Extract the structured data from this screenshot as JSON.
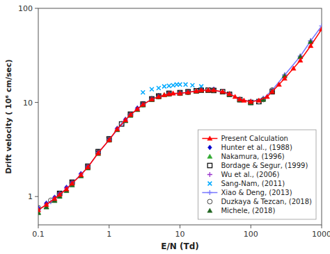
{
  "chart_data": {
    "type": "line",
    "xlabel": "E/N (Td)",
    "ylabel": "Drift velocity ( 10⁶ cm/sec)",
    "log": true,
    "xlim": [
      0.1,
      1000
    ],
    "ylim": [
      0.5,
      100
    ],
    "xticks": [
      0.1,
      1,
      10,
      100,
      1000
    ],
    "yticks": [
      1,
      10,
      100
    ],
    "grid": false,
    "legend": "lower right",
    "series": [
      {
        "name": "Present Calculation",
        "color": "#ff0000",
        "marker": "triangle",
        "line_style": "solid",
        "x": [
          0.1,
          0.13,
          0.17,
          0.2,
          0.25,
          0.3,
          0.4,
          0.5,
          0.7,
          1.0,
          1.3,
          1.7,
          2.0,
          2.5,
          3.0,
          4.0,
          5.0,
          6.0,
          7.0,
          8.0,
          10.0,
          13.0,
          17.0,
          20.0,
          25.0,
          30.0,
          40.0,
          50.0,
          60.0,
          70.0,
          80.0,
          100.0,
          130.0,
          170.0,
          200.0,
          250.0,
          300.0,
          400.0,
          500.0,
          700.0,
          1000.0
        ],
        "values": [
          0.72,
          0.82,
          0.95,
          1.05,
          1.2,
          1.38,
          1.7,
          2.05,
          2.9,
          4.0,
          5.2,
          6.5,
          7.4,
          8.5,
          9.5,
          10.8,
          11.5,
          12.0,
          12.3,
          12.5,
          12.5,
          12.8,
          13.2,
          13.5,
          13.5,
          13.5,
          13.0,
          12.3,
          11.5,
          10.8,
          10.5,
          10.2,
          10.5,
          11.5,
          13.0,
          15.5,
          18.0,
          23.0,
          28.0,
          40.0,
          60.0
        ]
      },
      {
        "name": "Hunter et al., (1988)",
        "color": "#0000cc",
        "marker": "diamond",
        "line_style": "none",
        "x": [
          0.1,
          0.13,
          0.17,
          0.2,
          0.25,
          0.3,
          0.4,
          0.5,
          0.7,
          1.0,
          1.3,
          1.7,
          2.0,
          2.5,
          3.0,
          4.0,
          5.0,
          7.0,
          10.0,
          13.0,
          20.0,
          30.0
        ],
        "values": [
          0.75,
          0.85,
          0.98,
          1.08,
          1.25,
          1.42,
          1.75,
          2.1,
          3.0,
          4.1,
          5.3,
          6.6,
          7.5,
          8.7,
          9.7,
          11.0,
          11.8,
          12.5,
          12.7,
          13.0,
          13.7,
          13.8
        ]
      },
      {
        "name": "Nakamura, (1996)",
        "color": "#33aa33",
        "marker": "triangle",
        "line_style": "none",
        "x": [
          0.1,
          0.13,
          0.17,
          0.2,
          0.25,
          0.3,
          0.4,
          0.5,
          0.7,
          1.0,
          1.3,
          1.7,
          2.0,
          2.5,
          3.0,
          4.0,
          5.0,
          6.0,
          7.0,
          10.0,
          13.0,
          17.0,
          20.0,
          25.0,
          30.0,
          40.0,
          50.0,
          70.0,
          100.0,
          150.0,
          200.0,
          300.0,
          500.0,
          700.0
        ],
        "values": [
          0.68,
          0.78,
          0.92,
          1.02,
          1.18,
          1.35,
          1.68,
          2.02,
          2.88,
          3.98,
          5.15,
          6.4,
          7.3,
          8.4,
          9.4,
          10.7,
          11.5,
          12.0,
          12.3,
          12.5,
          12.8,
          13.2,
          13.5,
          13.5,
          13.5,
          13.0,
          12.3,
          10.8,
          10.2,
          11.0,
          13.5,
          19.5,
          31.0,
          45.0
        ]
      },
      {
        "name": "Bordage & Segur, (1999)",
        "color": "#000000",
        "marker": "open-square",
        "line_style": "none",
        "x": [
          0.2,
          0.3,
          0.5,
          0.7,
          1.0,
          1.5,
          2.0,
          3.0,
          4.0,
          5.0,
          7.0,
          10.0,
          13.0,
          17.0,
          20.0,
          25.0,
          30.0,
          40.0,
          50.0,
          70.0,
          100.0,
          130.0,
          200.0
        ],
        "values": [
          1.08,
          1.42,
          2.1,
          3.0,
          4.1,
          5.9,
          7.5,
          9.6,
          10.9,
          11.7,
          12.5,
          12.7,
          13.0,
          13.3,
          13.5,
          13.5,
          13.4,
          13.0,
          12.2,
          10.7,
          10.0,
          10.2,
          13.0
        ]
      },
      {
        "name": "Wu et al., (2006)",
        "color": "#9933cc",
        "marker": "plus",
        "line_style": "none",
        "x": [
          0.1,
          0.13,
          0.17,
          0.2,
          0.25,
          0.3,
          0.4,
          0.5,
          0.7,
          1.0,
          1.3,
          1.7,
          2.0,
          2.5,
          3.0,
          4.0,
          5.0,
          7.0,
          10.0,
          13.0,
          17.0,
          20.0,
          25.0,
          30.0,
          40.0,
          50.0,
          70.0,
          100.0,
          150.0,
          200.0,
          300.0,
          500.0,
          700.0
        ],
        "values": [
          0.73,
          0.83,
          0.97,
          1.07,
          1.23,
          1.4,
          1.73,
          2.08,
          2.95,
          4.05,
          5.22,
          6.48,
          7.38,
          8.48,
          9.48,
          10.78,
          11.55,
          12.35,
          12.6,
          12.9,
          13.25,
          13.55,
          13.55,
          13.55,
          13.05,
          12.35,
          10.85,
          10.25,
          11.05,
          13.55,
          19.55,
          31.05,
          45.05
        ]
      },
      {
        "name": "Sang-Nam, (2011)",
        "color": "#00aaff",
        "marker": "x",
        "line_style": "none",
        "x": [
          3.0,
          4.0,
          5.0,
          6.0,
          7.0,
          8.0,
          9.0,
          10.0,
          12.0,
          15.0,
          20.0
        ],
        "values": [
          12.8,
          13.8,
          14.2,
          14.8,
          15.0,
          15.2,
          15.5,
          15.5,
          15.5,
          15.2,
          14.8
        ]
      },
      {
        "name": "Xiao & Deng, (2013)",
        "color": "#7777ff",
        "marker": "plus",
        "line_style": "solid",
        "x": [
          0.1,
          0.15,
          0.2,
          0.3,
          0.5,
          0.7,
          1.0,
          1.5,
          2.0,
          3.0,
          4.0,
          5.0,
          7.0,
          10.0,
          13.0,
          17.0,
          20.0,
          30.0,
          50.0,
          70.0,
          100.0,
          150.0,
          200.0,
          300.0,
          500.0,
          700.0,
          1000.0
        ],
        "values": [
          0.72,
          0.88,
          1.05,
          1.38,
          2.05,
          2.9,
          4.0,
          5.85,
          7.4,
          9.5,
          10.8,
          11.5,
          12.3,
          12.5,
          12.8,
          13.2,
          13.5,
          13.5,
          12.3,
          10.8,
          10.2,
          11.0,
          13.5,
          19.5,
          31.0,
          45.0,
          65.0
        ]
      },
      {
        "name": "Duzkaya & Tezcan, (2018)",
        "color": "#444444",
        "marker": "open-circle",
        "line_style": "none",
        "x": [
          0.1,
          0.15,
          0.2,
          0.3,
          0.5,
          0.7,
          1.0,
          1.5,
          2.0,
          3.0,
          4.0,
          5.0,
          7.0,
          10.0,
          13.0,
          17.0,
          20.0,
          30.0,
          50.0,
          70.0,
          100.0,
          130.0,
          150.0,
          200.0
        ],
        "values": [
          0.76,
          0.91,
          1.07,
          1.4,
          2.08,
          2.93,
          4.03,
          5.92,
          7.42,
          9.52,
          10.82,
          11.52,
          12.32,
          12.52,
          12.82,
          13.22,
          13.52,
          13.42,
          12.22,
          10.72,
          10.02,
          10.22,
          10.72,
          13.52
        ]
      },
      {
        "name": "Michele, (2018)",
        "color": "#226622",
        "marker": "triangle",
        "line_style": "none",
        "x": [
          0.1,
          0.13,
          0.17,
          0.2,
          0.25,
          0.3,
          0.4,
          0.5,
          0.7,
          1.0,
          1.3,
          1.7,
          2.0,
          2.5,
          3.0,
          4.0,
          5.0,
          7.0,
          10.0,
          13.0,
          17.0,
          20.0,
          25.0,
          30.0,
          40.0,
          50.0,
          70.0,
          100.0,
          150.0,
          200.0,
          300.0,
          500.0,
          700.0
        ],
        "values": [
          0.67,
          0.77,
          0.9,
          1.0,
          1.15,
          1.32,
          1.65,
          2.0,
          2.85,
          3.95,
          5.1,
          6.35,
          7.25,
          8.35,
          9.35,
          10.65,
          11.4,
          12.2,
          12.4,
          12.7,
          13.1,
          13.4,
          13.4,
          13.4,
          12.9,
          12.1,
          10.6,
          9.9,
          10.7,
          13.2,
          19.1,
          30.5,
          44.0
        ]
      }
    ]
  }
}
